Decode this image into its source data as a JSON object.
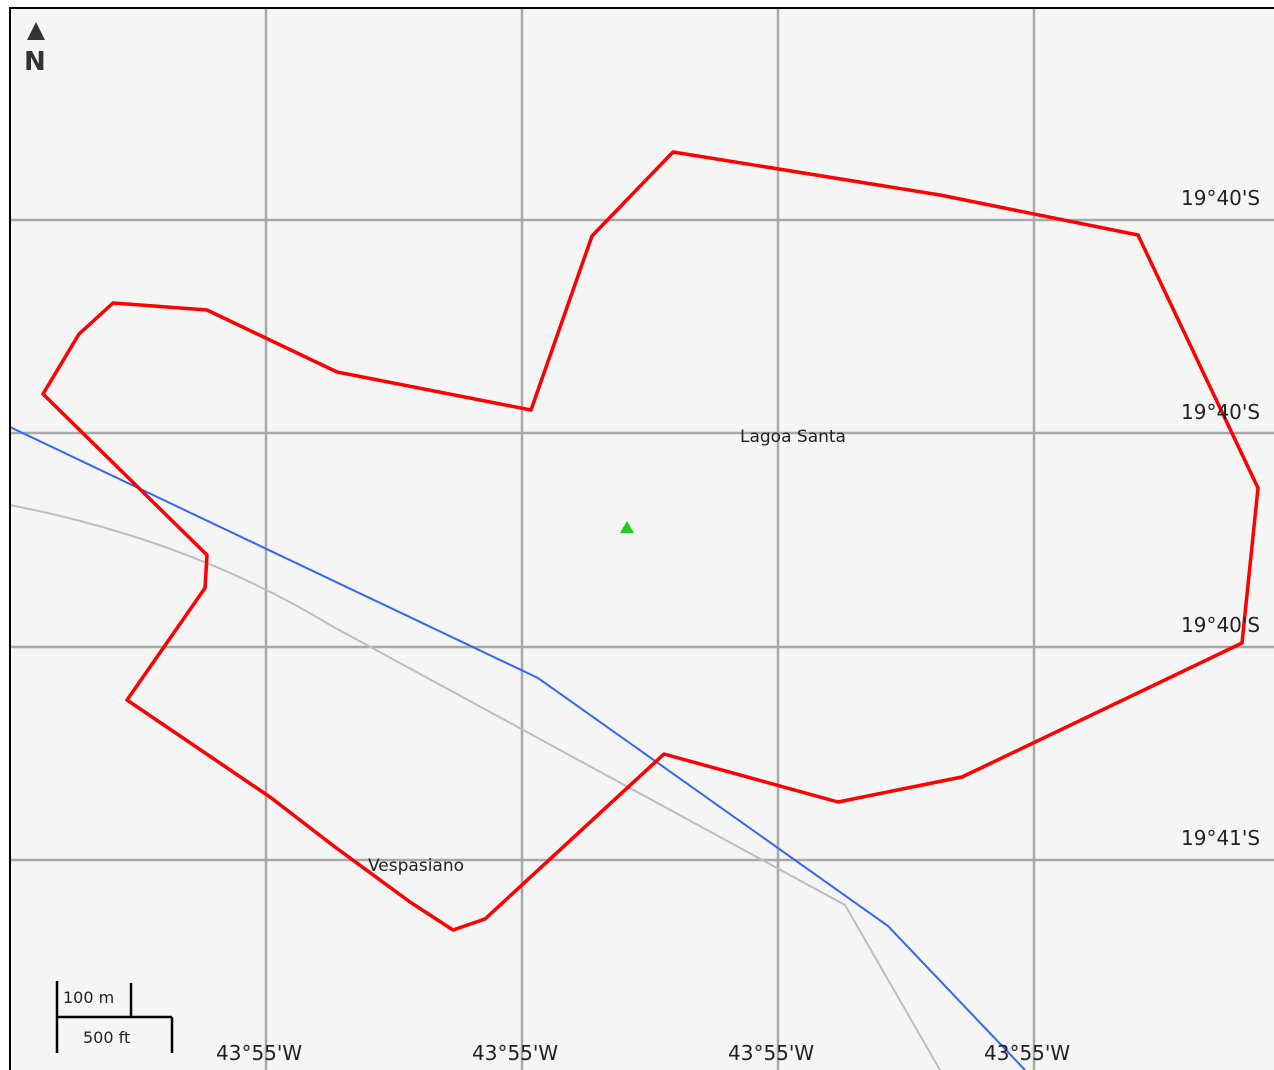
{
  "map": {
    "north_label": "N",
    "colors": {
      "background": "#f5f5f5",
      "grid": "#a8a8a8",
      "boundary": "#ff0000",
      "river": "#3366ff",
      "road": "#bdbdbd",
      "marker": "#22cc22",
      "frame": "#000000"
    },
    "grid_labels": {
      "latitude": [
        "19°40'S",
        "19°40'S",
        "19°40'S",
        "19°41'S"
      ],
      "longitude": [
        "43°55'W",
        "43°55'W",
        "43°55'W",
        "43°55'W"
      ]
    },
    "places": [
      {
        "name": "Lagoa Santa"
      },
      {
        "name": "Vespasiano"
      }
    ],
    "scale_bar": {
      "metric_label": "100 m",
      "imperial_label": "500 ft"
    },
    "icons": {
      "north_arrow": "north-arrow-icon",
      "marker": "triangle-marker-icon"
    }
  }
}
